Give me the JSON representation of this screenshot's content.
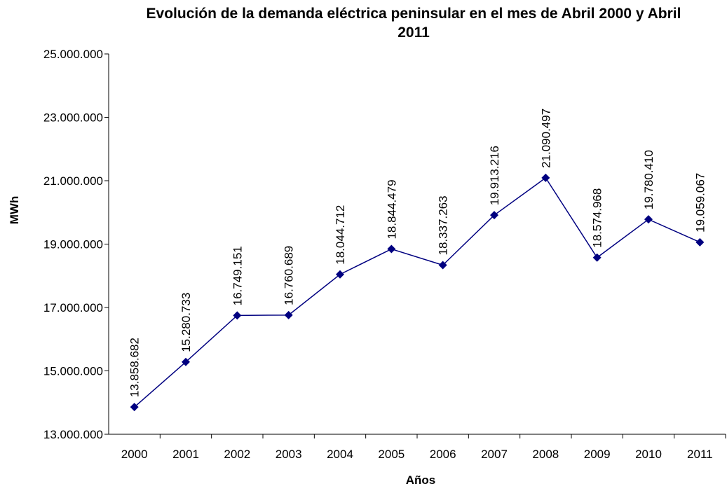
{
  "chart_data": {
    "type": "line",
    "title": "Evolución de la demanda eléctrica peninsular en el mes de Abril 2000 y Abril 2011",
    "y_label": "MWh",
    "x_label": "Años",
    "categories": [
      "2000",
      "2001",
      "2002",
      "2003",
      "2004",
      "2005",
      "2006",
      "2007",
      "2008",
      "2009",
      "2010",
      "2011"
    ],
    "series": [
      {
        "color": "#000080",
        "values": [
          13858682,
          15280733,
          16749151,
          16760689,
          18044712,
          18844479,
          18337263,
          19913216,
          21090497,
          18574968,
          19780410,
          19059067
        ],
        "value_labels": [
          "13.858.682",
          "15.280.733",
          "16.749.151",
          "16.760.689",
          "18.044.712",
          "18.844.479",
          "18.337.263",
          "19.913.216",
          "21.090.497",
          "18.574.968",
          "19.780.410",
          "19.059.067"
        ]
      }
    ],
    "ylim": [
      13000000,
      25000000
    ],
    "yticks": [
      {
        "value": 13000000,
        "label": "13.000.000"
      },
      {
        "value": 15000000,
        "label": "15.000.000"
      },
      {
        "value": 17000000,
        "label": "17.000.000"
      },
      {
        "value": 19000000,
        "label": "19.000.000"
      },
      {
        "value": 21000000,
        "label": "21.000.000"
      },
      {
        "value": 23000000,
        "label": "23.000.000"
      },
      {
        "value": 25000000,
        "label": "25.000.000"
      }
    ],
    "grid": false
  }
}
